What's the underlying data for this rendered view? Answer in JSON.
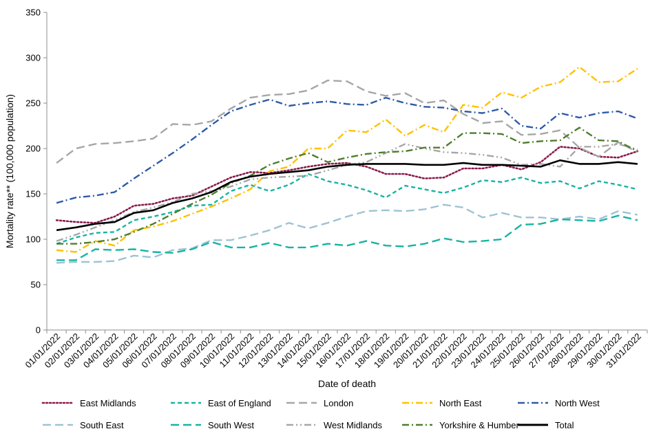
{
  "chart_data": {
    "type": "line",
    "title": "",
    "xlabel": "Date of death",
    "ylabel": "Mortality rate** (100,000 population)",
    "ylim": [
      0,
      350
    ],
    "yticks": [
      0,
      50,
      100,
      150,
      200,
      250,
      300,
      350
    ],
    "grid": false,
    "legend_position": "bottom",
    "categories": [
      "01/01/2022",
      "02/01/2022",
      "03/01/2022",
      "04/01/2022",
      "05/01/2022",
      "06/01/2022",
      "07/01/2022",
      "08/01/2022",
      "09/01/2022",
      "10/01/2022",
      "11/01/2022",
      "12/01/2022",
      "13/01/2022",
      "14/01/2022",
      "15/01/2022",
      "16/01/2022",
      "17/01/2022",
      "18/01/2022",
      "19/01/2022",
      "20/01/2022",
      "21/01/2022",
      "22/01/2022",
      "23/01/2022",
      "24/01/2022",
      "25/01/2022",
      "26/01/2022",
      "27/01/2022",
      "28/01/2022",
      "29/01/2022",
      "30/01/2022",
      "31/01/2022"
    ],
    "series": [
      {
        "name": "East Midlands",
        "color": "#8b1a4a",
        "dash": "dot",
        "values": [
          121,
          119,
          118,
          125,
          137,
          139,
          145,
          148,
          158,
          168,
          174,
          173,
          176,
          180,
          183,
          184,
          180,
          172,
          172,
          167,
          168,
          178,
          178,
          182,
          177,
          185,
          202,
          200,
          191,
          190,
          197
        ]
      },
      {
        "name": "East of England",
        "color": "#17b3a3",
        "dash": "dash",
        "values": [
          95,
          102,
          107,
          108,
          121,
          125,
          130,
          137,
          138,
          153,
          160,
          153,
          160,
          172,
          164,
          160,
          154,
          146,
          159,
          155,
          151,
          157,
          165,
          163,
          168,
          162,
          164,
          156,
          164,
          160,
          155
        ]
      },
      {
        "name": "London",
        "color": "#a6a6a6",
        "dash": "longdash",
        "values": [
          184,
          200,
          205,
          206,
          208,
          211,
          227,
          226,
          230,
          244,
          256,
          259,
          260,
          264,
          275,
          274,
          263,
          258,
          261,
          250,
          253,
          238,
          228,
          230,
          215,
          216,
          220,
          201,
          191,
          207,
          196
        ]
      },
      {
        "name": "North East",
        "color": "#ffc000",
        "dash": "dashdot",
        "values": [
          88,
          86,
          98,
          93,
          110,
          114,
          120,
          128,
          136,
          145,
          155,
          175,
          180,
          200,
          200,
          220,
          218,
          232,
          214,
          226,
          218,
          248,
          245,
          262,
          256,
          268,
          273,
          290,
          273,
          274,
          288
        ]
      },
      {
        "name": "North West",
        "color": "#2e5aa8",
        "dash": "dashdot",
        "values": [
          140,
          146,
          148,
          152,
          167,
          181,
          195,
          210,
          226,
          241,
          248,
          254,
          247,
          250,
          252,
          249,
          248,
          256,
          250,
          246,
          245,
          241,
          239,
          244,
          225,
          222,
          239,
          234,
          239,
          241,
          233
        ]
      },
      {
        "name": "South East",
        "color": "#9dc3d3",
        "dash": "longdash",
        "values": [
          74,
          75,
          75,
          76,
          82,
          80,
          88,
          90,
          99,
          99,
          104,
          110,
          118,
          112,
          118,
          125,
          131,
          132,
          131,
          133,
          138,
          135,
          124,
          129,
          124,
          124,
          122,
          125,
          122,
          131,
          127
        ]
      },
      {
        "name": "South West",
        "color": "#17b3a3",
        "dash": "longdash",
        "values": [
          77,
          77,
          89,
          88,
          89,
          86,
          85,
          89,
          97,
          91,
          91,
          96,
          91,
          91,
          95,
          93,
          98,
          93,
          92,
          95,
          101,
          97,
          98,
          100,
          116,
          117,
          122,
          121,
          120,
          126,
          121
        ]
      },
      {
        "name": "West Midlands",
        "color": "#a6a6a6",
        "dash": "dashdotdot",
        "values": [
          98,
          105,
          113,
          121,
          130,
          135,
          141,
          150,
          153,
          158,
          166,
          168,
          169,
          170,
          176,
          182,
          185,
          195,
          205,
          200,
          196,
          195,
          193,
          190,
          182,
          183,
          180,
          202,
          202,
          205,
          199
        ]
      },
      {
        "name": "Yorkshire & Humber",
        "color": "#4e7d2c",
        "dash": "dashdot",
        "values": [
          95,
          95,
          97,
          100,
          108,
          117,
          128,
          139,
          149,
          162,
          170,
          182,
          189,
          195,
          185,
          190,
          194,
          196,
          197,
          201,
          201,
          217,
          217,
          216,
          206,
          208,
          209,
          223,
          209,
          208,
          197
        ]
      },
      {
        "name": "Total",
        "color": "#000000",
        "dash": "solid",
        "values": [
          110,
          113,
          117,
          119,
          129,
          132,
          140,
          145,
          152,
          163,
          169,
          172,
          174,
          176,
          180,
          182,
          183,
          183,
          183,
          182,
          182,
          184,
          182,
          182,
          181,
          180,
          187,
          183,
          183,
          185,
          183
        ]
      }
    ]
  }
}
